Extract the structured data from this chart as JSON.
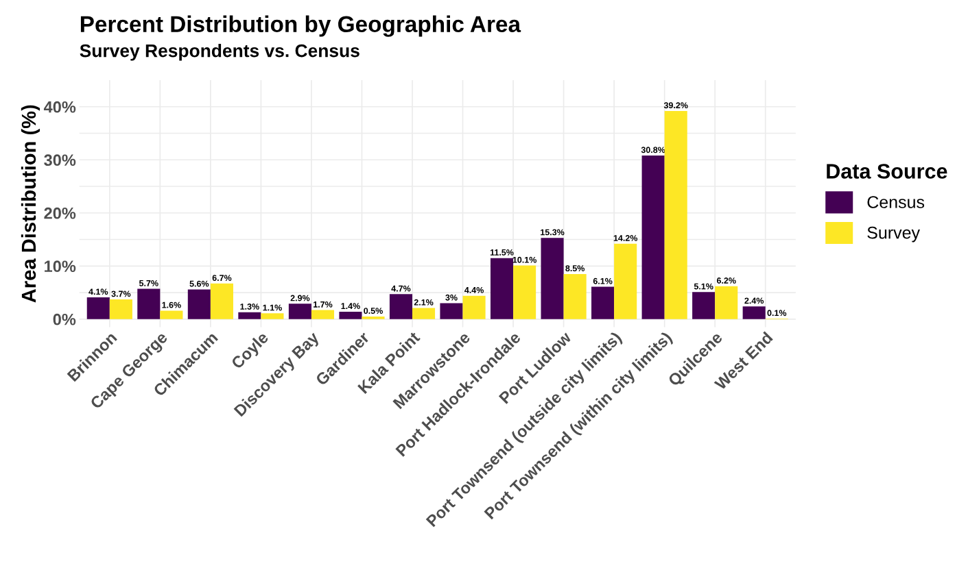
{
  "chart_data": {
    "type": "bar",
    "title": "Percent Distribution by Geographic Area",
    "subtitle": "Survey Respondents vs. Census",
    "ylabel": "Area Distribution (%)",
    "legend_title": "Data Source",
    "legend": "right",
    "grid": true,
    "categories": [
      "Brinnon",
      "Cape George",
      "Chimacum",
      "Coyle",
      "Discovery Bay",
      "Gardiner",
      "Kala Point",
      "Marrowstone",
      "Port Hadlock-Irondale",
      "Port Ludlow",
      "Port Townsend (outside city limits)",
      "Port Townsend (within city limits)",
      "Quilcene",
      "West End"
    ],
    "series": [
      {
        "name": "Census",
        "color": "#440154",
        "values": [
          4.1,
          5.7,
          5.6,
          1.3,
          2.9,
          1.4,
          4.7,
          3,
          11.5,
          15.3,
          6.1,
          30.8,
          5.1,
          2.4
        ],
        "value_labels": [
          "4.1%",
          "5.7%",
          "5.6%",
          "1.3%",
          "2.9%",
          "1.4%",
          "4.7%",
          "3%",
          "11.5%",
          "15.3%",
          "6.1%",
          "30.8%",
          "5.1%",
          "2.4%"
        ]
      },
      {
        "name": "Survey",
        "color": "#fde725",
        "values": [
          3.7,
          1.6,
          6.7,
          1.1,
          1.7,
          0.5,
          2.1,
          4.4,
          10.1,
          8.5,
          14.2,
          39.2,
          6.2,
          0.1
        ],
        "value_labels": [
          "3.7%",
          "1.6%",
          "6.7%",
          "1.1%",
          "1.7%",
          "0.5%",
          "2.1%",
          "4.4%",
          "10.1%",
          "8.5%",
          "14.2%",
          "39.2%",
          "6.2%",
          "0.1%"
        ]
      }
    ],
    "ylim": [
      -1.5,
      45
    ],
    "yticks": [
      {
        "value": 0,
        "label": "0%"
      },
      {
        "value": 5,
        "label": null
      },
      {
        "value": 10,
        "label": "10%"
      },
      {
        "value": 15,
        "label": null
      },
      {
        "value": 20,
        "label": "20%"
      },
      {
        "value": 25,
        "label": null
      },
      {
        "value": 30,
        "label": "30%"
      },
      {
        "value": 35,
        "label": null
      },
      {
        "value": 40,
        "label": "40%"
      }
    ]
  }
}
